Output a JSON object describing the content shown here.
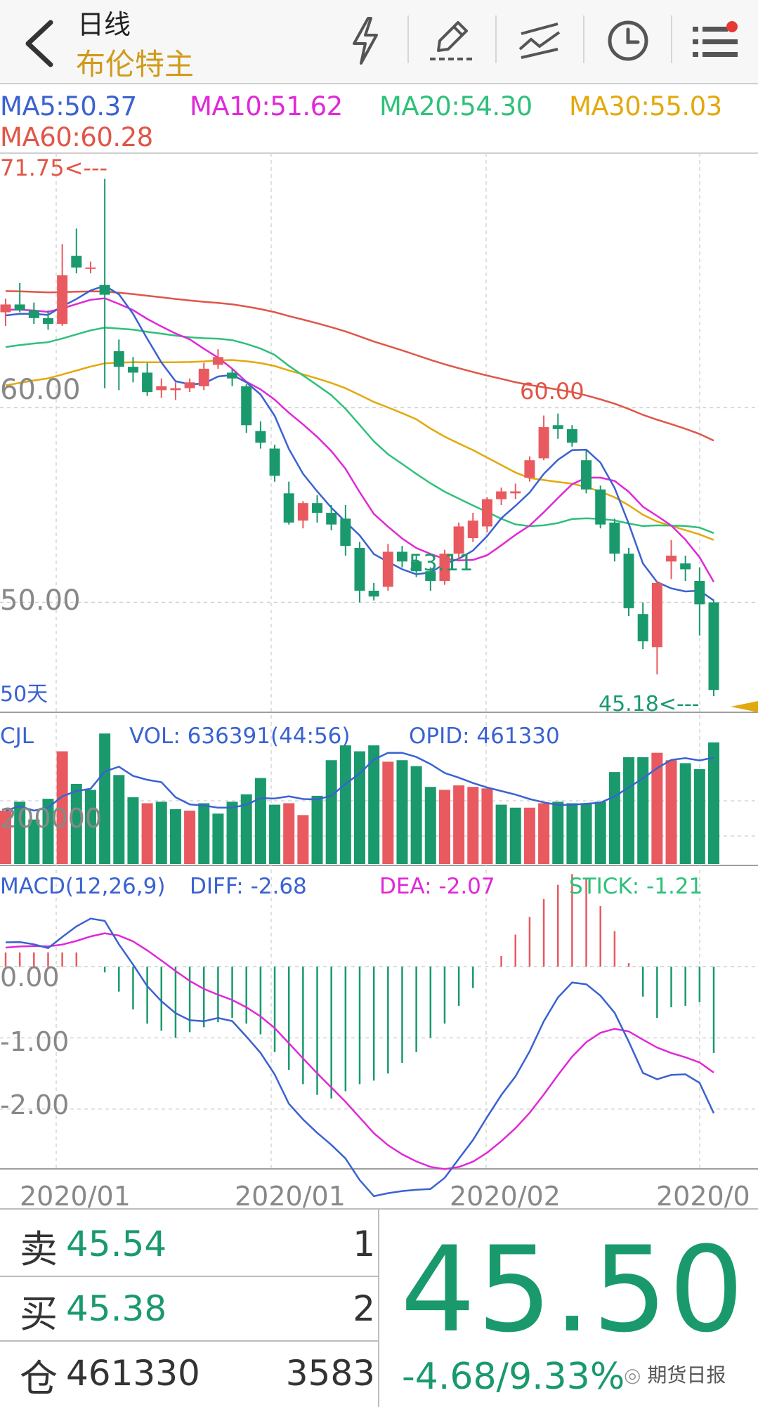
{
  "header": {
    "period": "日线",
    "contract": "布伦特主",
    "icons": [
      "back-chevron-icon",
      "flash-icon",
      "draw-pen-icon",
      "indicator-lines-icon",
      "clock-icon",
      "menu-list-icon"
    ],
    "notify_dot_color": "#e53935"
  },
  "ma": {
    "ma5": "MA5:50.37",
    "ma10": "MA10:51.62",
    "ma20": "MA20:54.30",
    "ma30": "MA30:55.03",
    "ma60": "MA60:60.28",
    "colors": {
      "ma5": "#3a62d1",
      "ma10": "#e028d8",
      "ma20": "#2fc07a",
      "ma30": "#e3a90c",
      "ma60": "#e05648"
    }
  },
  "price_panel": {
    "y_ticks": [
      "60.00",
      "50.00"
    ],
    "high_marker": "71.75<---",
    "mid_high_label": "60.00",
    "mid_low_label": "53.11",
    "low_marker": "45.18<---",
    "days_label": "50天"
  },
  "volume_panel": {
    "name": "CJL",
    "vol": "VOL: 636391(44:56)",
    "opid": "OPID: 461330",
    "y_tick": "200000"
  },
  "macd_panel": {
    "name": "MACD(12,26,9)",
    "diff": "DIFF: -2.68",
    "dea": "DEA: -2.07",
    "stick": "STICK: -1.21",
    "y_ticks": [
      "0.00",
      "-1.00",
      "-2.00"
    ]
  },
  "x_axis": [
    "2020/01",
    "2020/01",
    "2020/02",
    "2020/0"
  ],
  "chart_data": {
    "type": "candlestick",
    "candles": [
      [
        64.9,
        65.6,
        64.2,
        65.3
      ],
      [
        65.3,
        66.4,
        64.9,
        65.0
      ],
      [
        65.0,
        65.4,
        64.3,
        64.6
      ],
      [
        64.6,
        65.0,
        64.0,
        64.3
      ],
      [
        64.3,
        68.4,
        64.2,
        66.8
      ],
      [
        67.8,
        69.2,
        66.9,
        67.2
      ],
      [
        67.2,
        67.5,
        66.9,
        67.2
      ],
      [
        66.3,
        71.75,
        61.0,
        65.8
      ],
      [
        62.9,
        63.5,
        60.9,
        62.1
      ],
      [
        62.1,
        62.6,
        61.3,
        61.8
      ],
      [
        61.8,
        62.3,
        60.6,
        60.8
      ],
      [
        60.9,
        61.5,
        60.5,
        61.1
      ],
      [
        60.9,
        61.3,
        60.4,
        61.0
      ],
      [
        61.0,
        61.5,
        60.8,
        61.3
      ],
      [
        61.1,
        62.3,
        60.9,
        62.0
      ],
      [
        62.2,
        63.0,
        62.0,
        62.6
      ],
      [
        61.8,
        62.0,
        61.1,
        61.5
      ],
      [
        61.1,
        61.2,
        58.7,
        59.1
      ],
      [
        58.8,
        59.3,
        57.9,
        58.2
      ],
      [
        57.9,
        58.1,
        56.2,
        56.5
      ],
      [
        55.6,
        56.2,
        54.0,
        54.1
      ],
      [
        54.2,
        55.2,
        53.8,
        55.1
      ],
      [
        55.1,
        55.5,
        54.1,
        54.6
      ],
      [
        54.6,
        55.0,
        53.7,
        54.0
      ],
      [
        54.3,
        55.0,
        52.4,
        52.9
      ],
      [
        52.8,
        53.1,
        50.0,
        50.6
      ],
      [
        50.6,
        51.0,
        50.1,
        50.3
      ],
      [
        50.8,
        53.0,
        50.6,
        52.6
      ],
      [
        52.6,
        52.9,
        51.8,
        52.1
      ],
      [
        52.1,
        52.4,
        51.3,
        51.6
      ],
      [
        51.6,
        51.8,
        50.6,
        51.1
      ],
      [
        51.1,
        52.7,
        50.9,
        52.5
      ],
      [
        52.5,
        54.1,
        52.1,
        53.9
      ],
      [
        53.3,
        54.6,
        53.1,
        54.2
      ],
      [
        53.9,
        55.4,
        53.6,
        55.3
      ],
      [
        55.3,
        55.9,
        55.0,
        55.7
      ],
      [
        55.6,
        56.1,
        55.3,
        55.7
      ],
      [
        56.4,
        57.5,
        56.2,
        57.3
      ],
      [
        57.4,
        59.6,
        57.3,
        59.0
      ],
      [
        59.1,
        59.7,
        58.4,
        58.9
      ],
      [
        58.9,
        59.1,
        58.0,
        58.2
      ],
      [
        57.3,
        57.8,
        55.6,
        55.8
      ],
      [
        55.8,
        56.0,
        53.8,
        54.0
      ],
      [
        54.1,
        54.3,
        52.1,
        52.5
      ],
      [
        52.5,
        52.8,
        49.3,
        49.7
      ],
      [
        49.4,
        50.0,
        47.6,
        48.0
      ],
      [
        47.7,
        51.1,
        46.3,
        51.0
      ],
      [
        52.1,
        53.2,
        51.2,
        52.4
      ],
      [
        52.0,
        52.4,
        51.1,
        51.7
      ],
      [
        51.1,
        51.8,
        48.3,
        49.9
      ],
      [
        50.0,
        50.1,
        45.18,
        45.5
      ]
    ],
    "volume": [
      180,
      210,
      150,
      220,
      380,
      270,
      250,
      440,
      300,
      225,
      205,
      210,
      185,
      180,
      205,
      170,
      210,
      235,
      290,
      200,
      205,
      165,
      230,
      350,
      400,
      380,
      400,
      345,
      350,
      330,
      260,
      250,
      265,
      260,
      255,
      200,
      190,
      190,
      205,
      210,
      205,
      205,
      210,
      310,
      360,
      360,
      375,
      350,
      340,
      320,
      410
    ],
    "volume_up": [
      1,
      0,
      0,
      0,
      1,
      0,
      0,
      0,
      0,
      0,
      1,
      0,
      0,
      1,
      0,
      0,
      0,
      0,
      0,
      0,
      1,
      1,
      0,
      0,
      0,
      0,
      0,
      1,
      0,
      0,
      0,
      1,
      1,
      1,
      1,
      0,
      0,
      1,
      1,
      0,
      0,
      0,
      0,
      0,
      0,
      0,
      1,
      1,
      0,
      0,
      0
    ],
    "macd_stick": [
      0.2,
      0.2,
      0.2,
      0.2,
      0.2,
      0.2,
      0.0,
      -0.08,
      -0.35,
      -0.6,
      -0.8,
      -0.9,
      -1.0,
      -0.92,
      -0.85,
      -0.78,
      -0.72,
      -0.8,
      -0.95,
      -1.2,
      -1.45,
      -1.65,
      -1.8,
      -1.85,
      -1.75,
      -1.65,
      -1.6,
      -1.5,
      -1.35,
      -1.2,
      -1.0,
      -0.8,
      -0.55,
      -0.3,
      0.0,
      0.15,
      0.45,
      0.7,
      0.95,
      1.15,
      1.3,
      1.25,
      0.85,
      0.5,
      0.05,
      -0.42,
      -0.72,
      -0.57,
      -0.55,
      -0.5,
      -1.21
    ],
    "y_range_price": [
      44.5,
      73.0
    ],
    "macd_range": [
      -2.8,
      0.85
    ]
  },
  "quotes": {
    "sell_label": "卖",
    "sell_price": "45.54",
    "sell_qty": "1",
    "buy_label": "买",
    "buy_price": "45.38",
    "buy_qty": "2",
    "oi_label": "仓",
    "oi_value": "461330",
    "oi_change": "3583",
    "last": "45.50",
    "change": "-4.68/9.33%",
    "watermark": "期货日报"
  }
}
